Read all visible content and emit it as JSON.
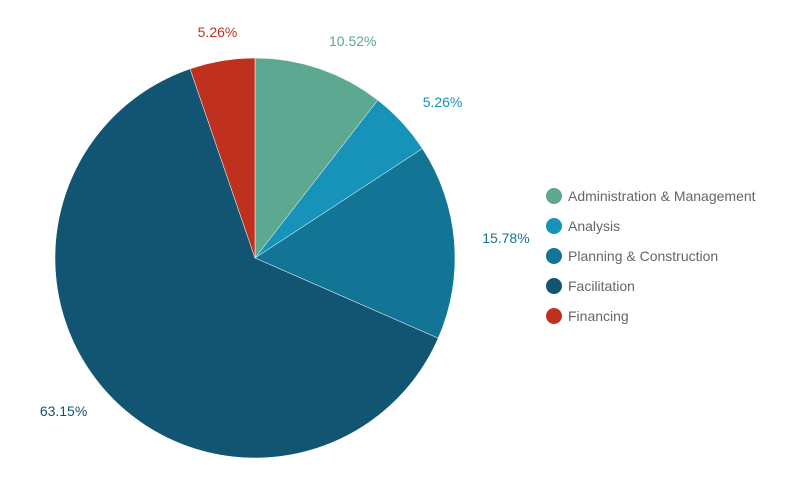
{
  "chart_data": {
    "type": "pie",
    "title": "",
    "categories": [
      "Administration & Management",
      "Analysis",
      "Planning & Construction",
      "Facilitation",
      "Financing"
    ],
    "values": [
      10.52,
      5.26,
      15.78,
      63.15,
      5.26
    ],
    "value_labels": [
      "10.52%",
      "5.26%",
      "15.78%",
      "63.15%",
      "5.26%"
    ],
    "colors": [
      "#5ca890",
      "#1792b9",
      "#127596",
      "#125572",
      "#c0301f"
    ],
    "start_angle": "12 o'clock",
    "direction": "clockwise",
    "legend_position": "right"
  }
}
